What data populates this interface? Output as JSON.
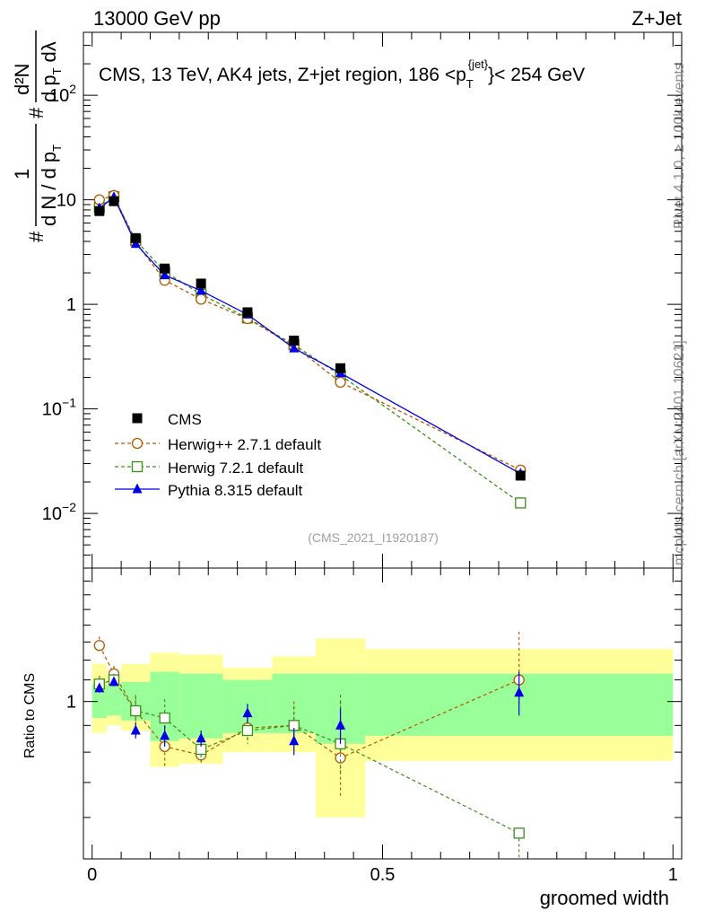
{
  "header": {
    "left": "13000 GeV pp",
    "right": "Z+Jet",
    "plot_title": "CMS, 13 TeV, AK4 jets, Z+jet region, 186 <p",
    "plot_title_sup": "{jet}",
    "plot_title_sub": "T",
    "plot_title_end": "}< 254 GeV",
    "analysis_id": "(CMS_2021_I1920187)"
  },
  "side_labels": {
    "rivet": "Rivet 4.1.0, ≥ 100k events",
    "mcplots": "mcplots.cern.ch [arXiv:2401.10621]"
  },
  "ylabel_main": {
    "hash": "#",
    "one": "1",
    "dn": "d N / d p",
    "dn_sub": "T",
    "hash2": "#",
    "d2n": "d²N",
    "dpt": "d p",
    "dpt_sub": "T",
    "dlambda": "dλ"
  },
  "colors": {
    "cms": "#000000",
    "herwigpp": "#b35900",
    "herwig7": "#3a8f1a",
    "pythia": "#0000e6",
    "band_outer": "#ffff99",
    "band_inner": "#99ff99"
  },
  "chart_data": [
    {
      "type": "scatter",
      "scale": "log",
      "title": "CMS, 13 TeV, AK4 jets, Z+jet region, 186 <pT{jet}< 254 GeV",
      "ylim": [
        0.003,
        400
      ],
      "yticks": [
        {
          "value": 0.01,
          "label": "10",
          "exp": "−2"
        },
        {
          "value": 0.1,
          "label": "10",
          "exp": "−1"
        },
        {
          "value": 1,
          "label": "1",
          "exp": ""
        },
        {
          "value": 10,
          "label": "10",
          "exp": ""
        },
        {
          "value": 100,
          "label": "10",
          "exp": "2"
        }
      ],
      "x": [
        0.0125,
        0.0375,
        0.075,
        0.125,
        0.1875,
        0.2675,
        0.3475,
        0.4275,
        0.7375
      ],
      "series": [
        {
          "name": "CMS",
          "key": "cms",
          "marker": "square-filled",
          "line": "none",
          "values": [
            7.8,
            9.7,
            4.3,
            2.2,
            1.58,
            0.84,
            0.45,
            0.245,
            0.023
          ]
        },
        {
          "name": "Herwig++ 2.7.1 default",
          "key": "herwigpp",
          "marker": "circle-open",
          "line": "dashed",
          "values": [
            10.0,
            11.0,
            3.9,
            1.7,
            1.12,
            0.73,
            0.4,
            0.18,
            0.026
          ]
        },
        {
          "name": "Herwig 7.2.1 default",
          "key": "herwig7",
          "marker": "square-open",
          "line": "dashed",
          "values": [
            8.4,
            10.7,
            4.1,
            2.05,
            1.25,
            0.74,
            0.41,
            0.21,
            0.0126
          ]
        },
        {
          "name": "Pythia 8.315 default",
          "key": "pythia",
          "marker": "triangle-filled",
          "line": "solid",
          "values": [
            8.3,
            10.6,
            3.8,
            1.9,
            1.35,
            0.8,
            0.38,
            0.22,
            0.024
          ]
        }
      ]
    },
    {
      "type": "scatter",
      "scale": "log",
      "ylabel": "Ratio to CMS",
      "xlabel": "groomed width",
      "ylim": [
        0.5,
        1.8
      ],
      "xlim": [
        -0.015,
        1.015
      ],
      "xticks": [
        {
          "value": 0,
          "label": "0"
        },
        {
          "value": 0.5,
          "label": "0.5"
        },
        {
          "value": 1,
          "label": "1"
        }
      ],
      "yticks": [
        {
          "value": 1,
          "label": "1"
        }
      ],
      "bins": [
        [
          0,
          0.025
        ],
        [
          0.025,
          0.05
        ],
        [
          0.05,
          0.1
        ],
        [
          0.1,
          0.15
        ],
        [
          0.15,
          0.225
        ],
        [
          0.225,
          0.31
        ],
        [
          0.31,
          0.385
        ],
        [
          0.385,
          0.47
        ],
        [
          0.47,
          1.0
        ]
      ],
      "band_outer": [
        [
          0.87,
          1.18
        ],
        [
          0.9,
          1.13
        ],
        [
          0.88,
          1.18
        ],
        [
          0.75,
          1.24
        ],
        [
          0.76,
          1.23
        ],
        [
          0.8,
          1.16
        ],
        [
          0.8,
          1.22
        ],
        [
          0.6,
          1.32
        ],
        [
          0.77,
          1.26
        ]
      ],
      "band_inner": [
        [
          0.93,
          1.08
        ],
        [
          0.94,
          1.07
        ],
        [
          0.92,
          1.09
        ],
        [
          0.84,
          1.14
        ],
        [
          0.85,
          1.13
        ],
        [
          0.87,
          1.1
        ],
        [
          0.87,
          1.13
        ],
        [
          0.83,
          1.13
        ],
        [
          0.86,
          1.13
        ]
      ],
      "series": [
        {
          "name": "Herwig++ 2.7.1 default",
          "key": "herwigpp",
          "marker": "circle-open",
          "values": [
            1.28,
            1.13,
            0.96,
            0.82,
            0.79,
            0.89,
            0.9,
            0.78,
            1.1
          ],
          "err_lo": [
            0.04,
            0.04,
            0.06,
            0.07,
            0.03,
            0.05,
            0.07,
            0.12,
            0.12
          ],
          "err_hi": [
            0.05,
            0.04,
            0.07,
            0.08,
            0.06,
            0.07,
            0.1,
            0.22,
            0.26
          ]
        },
        {
          "name": "Herwig 7.2.1 default",
          "key": "herwig7",
          "marker": "square-open",
          "values": [
            1.08,
            1.1,
            0.96,
            0.93,
            0.81,
            0.88,
            0.9,
            0.83,
            0.56
          ],
          "err_lo": [
            0.03,
            0.03,
            0.05,
            0.08,
            0.04,
            0.05,
            0.07,
            0.1,
            0.06
          ],
          "err_hi": [
            0.04,
            0.03,
            0.06,
            0.08,
            0.06,
            0.06,
            0.08,
            0.2,
            0.0
          ]
        },
        {
          "name": "Pythia 8.315 default",
          "key": "pythia",
          "marker": "triangle-filled",
          "values": [
            1.06,
            1.09,
            0.88,
            0.86,
            0.85,
            0.95,
            0.84,
            0.9,
            1.04
          ],
          "err_lo": [
            0.02,
            0.02,
            0.03,
            0.04,
            0.03,
            0.04,
            0.05,
            0.07,
            0.1
          ],
          "err_hi": [
            0.02,
            0.02,
            0.03,
            0.04,
            0.03,
            0.04,
            0.05,
            0.07,
            0.1
          ]
        }
      ]
    }
  ]
}
